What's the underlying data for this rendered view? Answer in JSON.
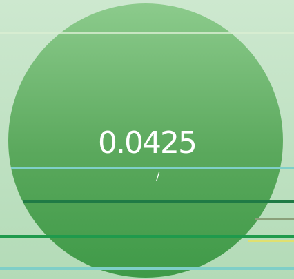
{
  "display": {
    "value": "0.0425",
    "sub": "/"
  }
}
